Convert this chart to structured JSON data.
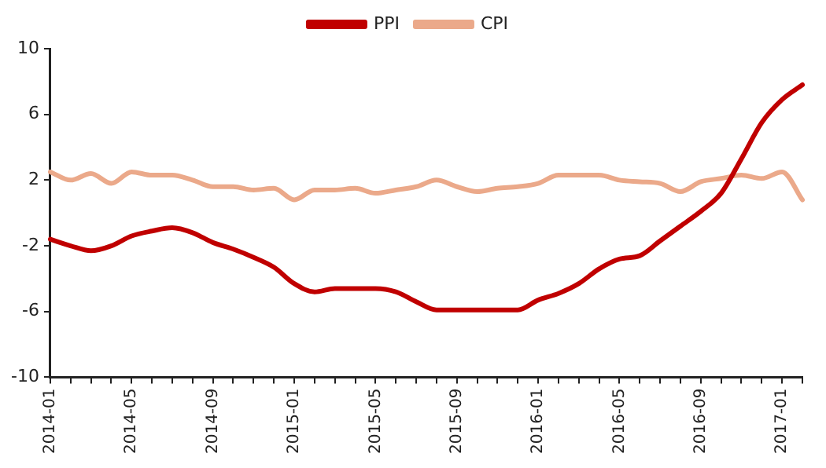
{
  "chart_data": {
    "type": "line",
    "categories": [
      "2014-01",
      null,
      null,
      null,
      "2014-05",
      null,
      null,
      null,
      "2014-09",
      null,
      null,
      null,
      "2015-01",
      null,
      null,
      null,
      "2015-05",
      null,
      null,
      null,
      "2015-09",
      null,
      null,
      null,
      "2016-01",
      null,
      null,
      null,
      "2016-05",
      null,
      null,
      null,
      "2016-09",
      null,
      null,
      null,
      "2017-01",
      null
    ],
    "series": [
      {
        "name": "PPI",
        "color": "#c00000",
        "values": [
          -1.6,
          -2.0,
          -2.3,
          -2.0,
          -1.4,
          -1.1,
          -0.9,
          -1.2,
          -1.8,
          -2.2,
          -2.7,
          -3.3,
          -4.3,
          -4.8,
          -4.6,
          -4.6,
          -4.6,
          -4.8,
          -5.4,
          -5.9,
          -5.9,
          -5.9,
          -5.9,
          -5.9,
          -5.3,
          -4.9,
          -4.3,
          -3.4,
          -2.8,
          -2.6,
          -1.7,
          -0.8,
          0.1,
          1.2,
          3.3,
          5.5,
          6.9,
          7.8
        ]
      },
      {
        "name": "CPI",
        "color": "#eba98a",
        "values": [
          2.5,
          2.0,
          2.4,
          1.8,
          2.5,
          2.3,
          2.3,
          2.0,
          1.6,
          1.6,
          1.4,
          1.5,
          0.8,
          1.4,
          1.4,
          1.5,
          1.2,
          1.4,
          1.6,
          2.0,
          1.6,
          1.3,
          1.5,
          1.6,
          1.8,
          2.3,
          2.3,
          2.3,
          2.0,
          1.9,
          1.8,
          1.3,
          1.9,
          2.1,
          2.3,
          2.1,
          2.5,
          0.8
        ]
      }
    ],
    "ylim": [
      -10,
      10
    ],
    "yticks": [
      -10,
      -6,
      -2,
      2,
      6,
      10
    ],
    "grid": false,
    "legend": "top",
    "marker": "none",
    "line_style": "solid"
  }
}
